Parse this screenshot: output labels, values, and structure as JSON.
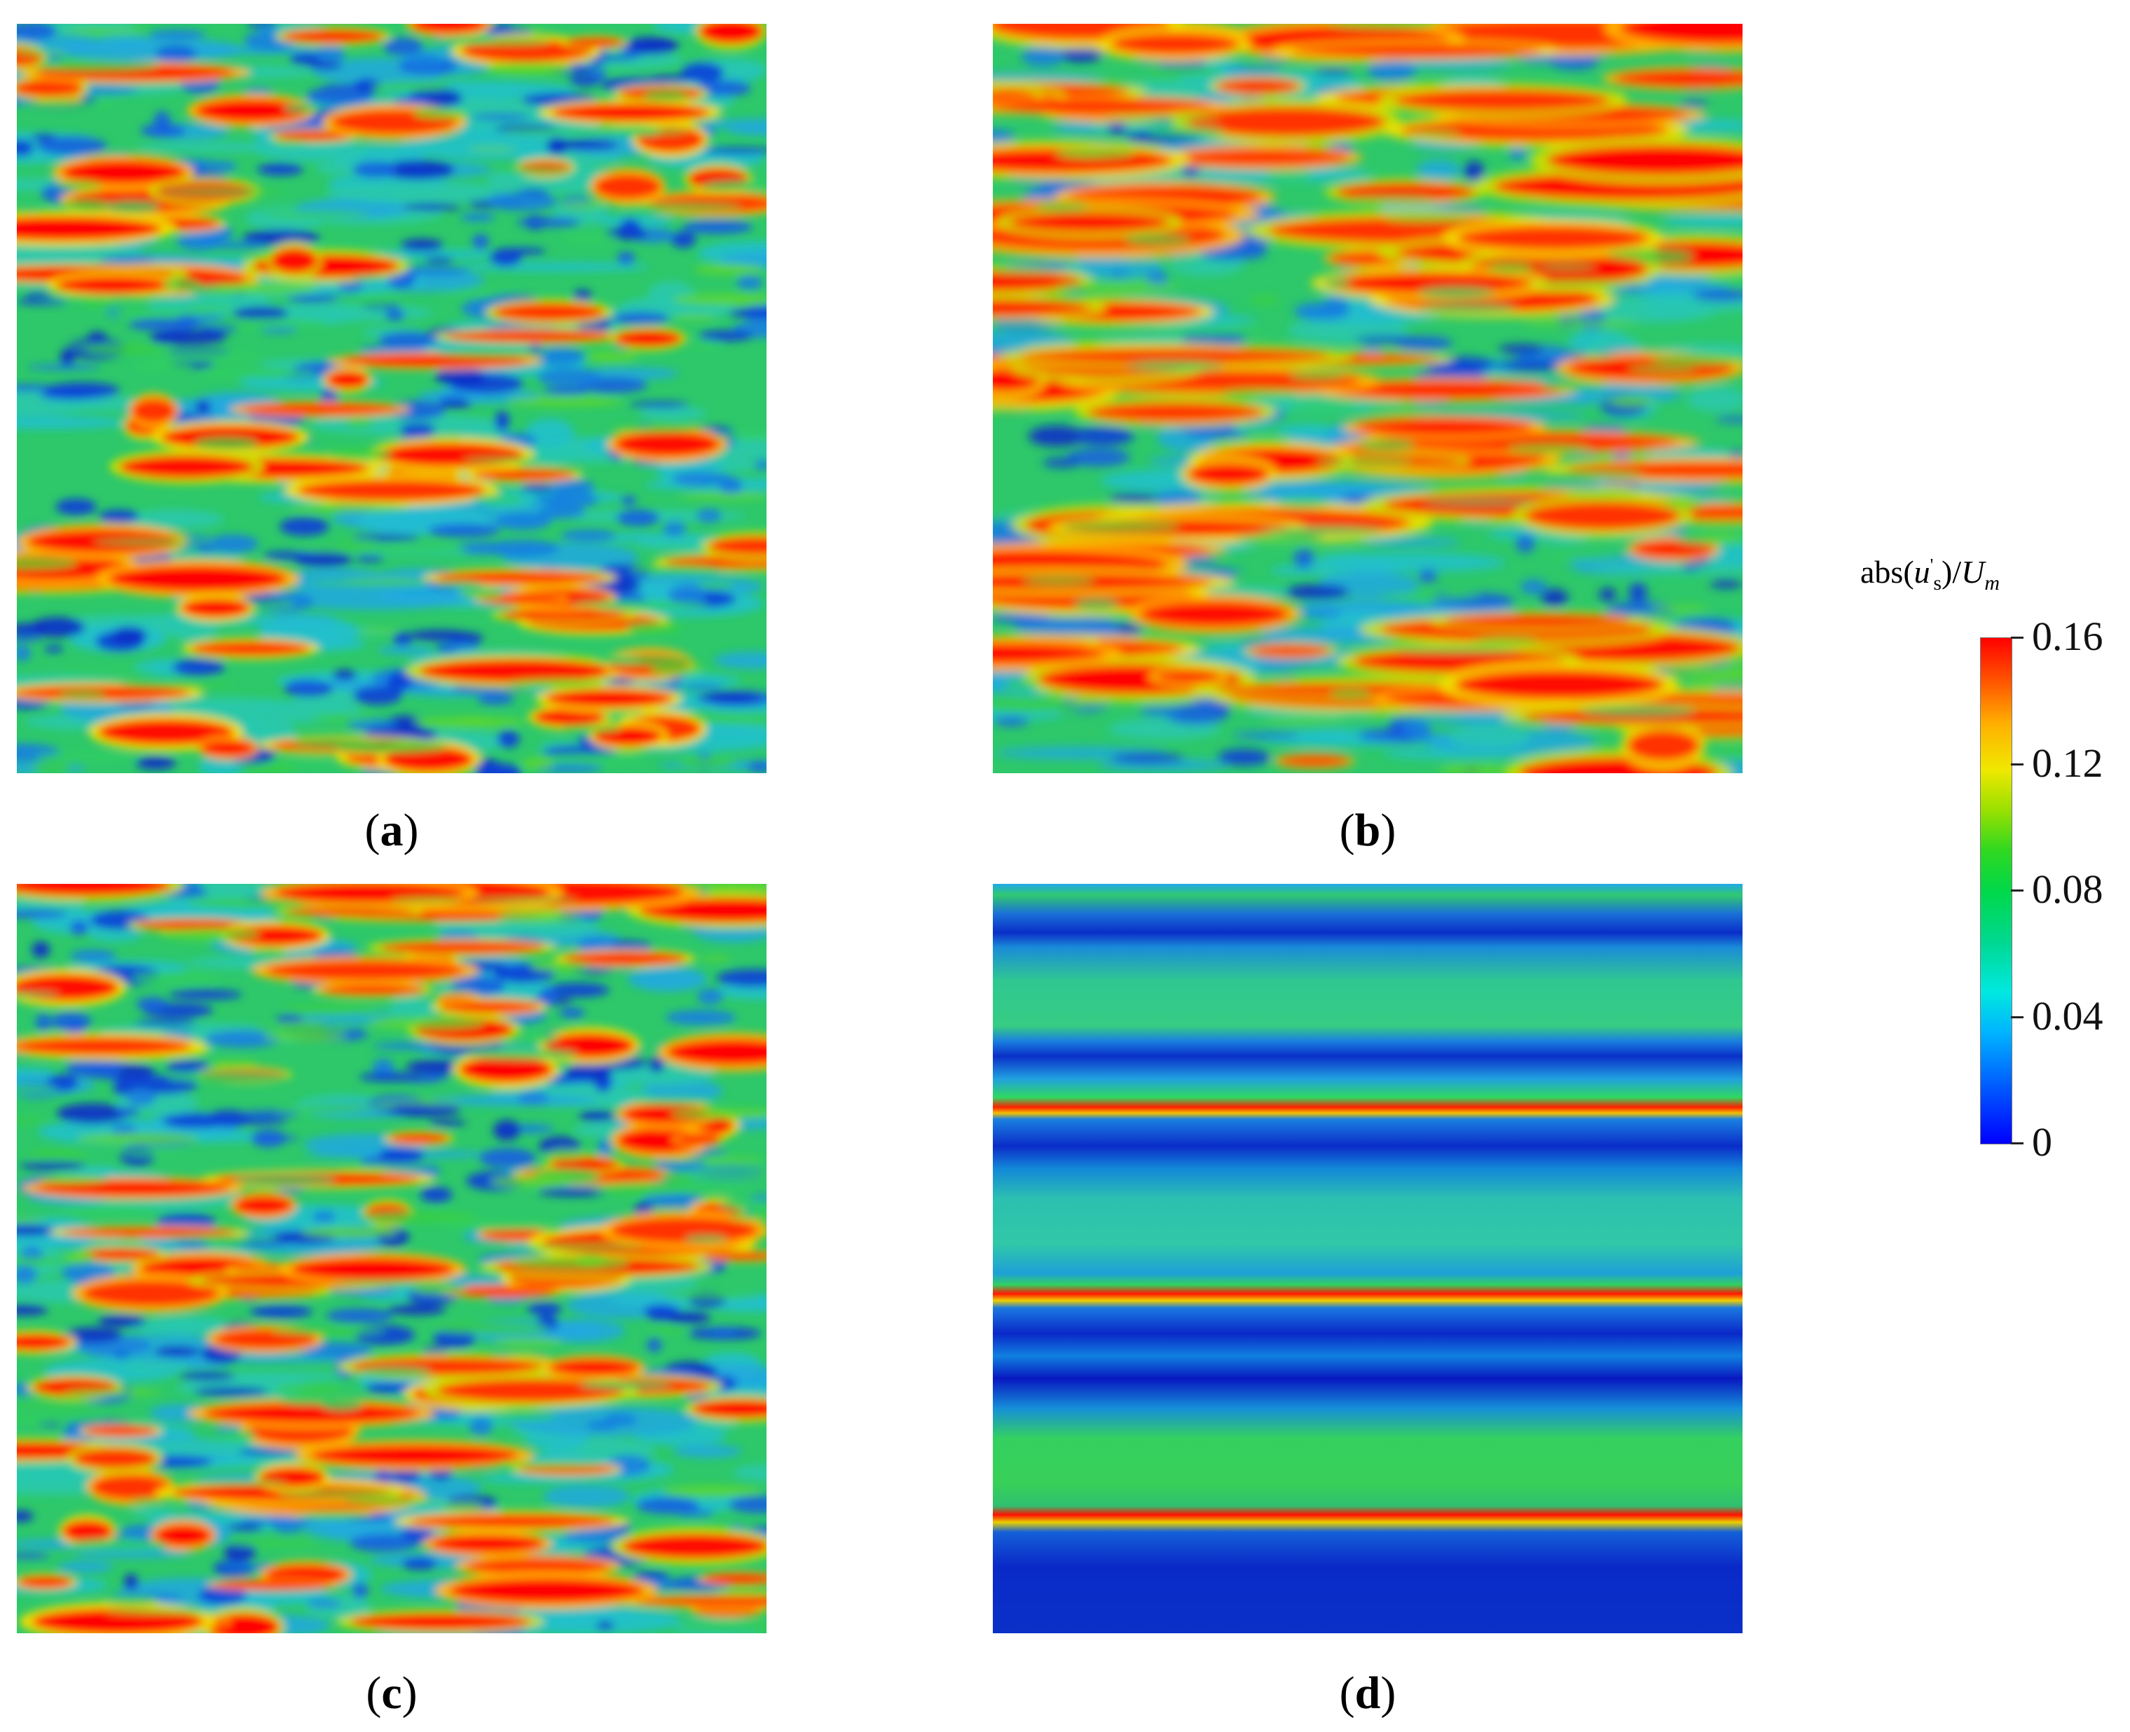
{
  "figure": {
    "panels": [
      {
        "id": "a",
        "label": "a",
        "pattern": "turbulent-streaks",
        "intensity": "low"
      },
      {
        "id": "b",
        "label": "b",
        "pattern": "turbulent-streaks",
        "intensity": "high"
      },
      {
        "id": "c",
        "label": "c",
        "pattern": "turbulent-streaks",
        "intensity": "medium"
      },
      {
        "id": "d",
        "label": "d",
        "pattern": "horizontal-bands",
        "intensity": "banded"
      }
    ],
    "colorbar": {
      "title_prefix": "abs(",
      "title_var": "u",
      "title_sup": "'",
      "title_sub": "s",
      "title_mid": ")/",
      "title_denom": "U",
      "title_denom_sub": "m",
      "ticks": [
        "0.16",
        "0.12",
        "0.08",
        "0.04",
        "0"
      ],
      "min": 0,
      "max": 0.16,
      "colormap": [
        "#0000ff",
        "#00b4ff",
        "#00d890",
        "#30d820",
        "#f0e800",
        "#ff5a00",
        "#ff0000"
      ]
    }
  }
}
